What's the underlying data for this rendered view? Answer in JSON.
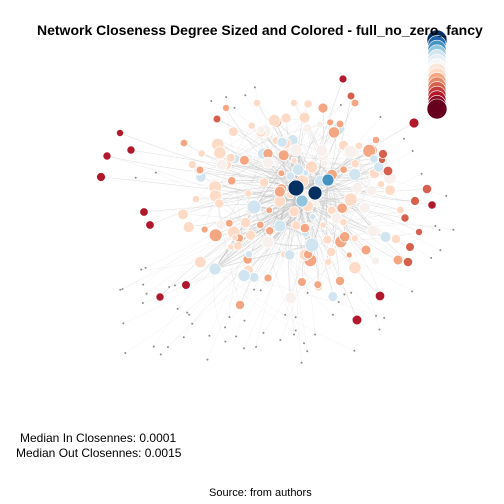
{
  "title": "Network Closeness Degree Sized and Colored - full_no_zero_fancy",
  "stats": {
    "median_in_label": "Median In Closennes:",
    "median_in_value": "0.0001",
    "median_out_label": "Median Out Closennes:",
    "median_out_value": "0.0015"
  },
  "source": "Source: from authors",
  "palette": {
    "deep_red": "#67001f",
    "red": "#b2182b",
    "orange": "#d6604d",
    "salmon": "#f4a582",
    "peach": "#fddbc7",
    "cream": "#f7f0ec",
    "light_blue": "#d1e5f0",
    "mid_blue": "#92c5de",
    "blue": "#4393c3",
    "dark_blue": "#2166ac",
    "navy": "#053061",
    "edge": "#bdbdbd",
    "isolate": "#8c8c8c"
  },
  "legend_colors": [
    "#053061",
    "#2166ac",
    "#4393c3",
    "#92c5de",
    "#d1e5f0",
    "#e6eef4",
    "#f7f7f7",
    "#fbe6da",
    "#fddbc7",
    "#f4a582",
    "#e08868",
    "#d6604d",
    "#c23b3b",
    "#b2182b",
    "#8c0d25",
    "#67001f"
  ]
}
